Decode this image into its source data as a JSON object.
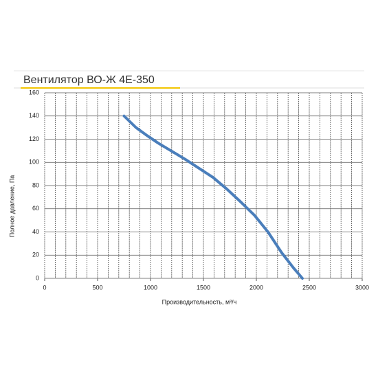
{
  "chart_data": {
    "type": "line",
    "title": "Вентилятор ВО-Ж 4Е-350",
    "x_label": "Производительность, м³/ч",
    "y_label": "Полное давление, Па",
    "x": [
      750,
      863,
      974,
      1071,
      1331,
      1591,
      1721,
      1851,
      1981,
      2110,
      2240,
      2351,
      2435
    ],
    "series": [
      {
        "name": "ВО-Ж 4Е-350",
        "color": "#4a7ebb",
        "values": [
          140,
          130,
          122.7,
          116.7,
          102.5,
          87,
          77,
          66,
          54.5,
          40,
          22,
          9,
          0
        ]
      }
    ],
    "xlim": [
      0,
      3000
    ],
    "ylim": [
      0,
      160
    ],
    "xticks": [
      0,
      500,
      1000,
      1500,
      2000,
      2500,
      3000
    ],
    "yticks": [
      0,
      20,
      40,
      60,
      80,
      100,
      120,
      140,
      160
    ],
    "xgrid": [
      0,
      100,
      200,
      300,
      400,
      500,
      600,
      700,
      800,
      900,
      1000,
      1100,
      1200,
      1300,
      1400,
      1500,
      1600,
      1700,
      1800,
      1900,
      2000,
      2100,
      2200,
      2300,
      2400,
      2500,
      2600,
      2700,
      2800,
      2900,
      3000
    ],
    "grid": true
  }
}
